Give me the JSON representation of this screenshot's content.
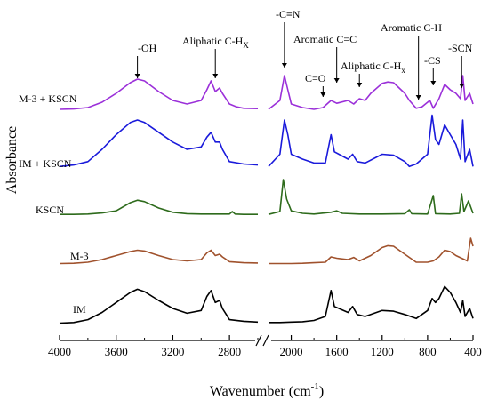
{
  "chart_data": {
    "type": "line",
    "xlabel": "Wavenumber (cm",
    "xlabel_sup": "-1",
    "xlabel_end": ")",
    "ylabel": "Absorbance",
    "x_reversed": true,
    "x_break": true,
    "x_segments": [
      [
        4000,
        2600
      ],
      [
        2200,
        400
      ]
    ],
    "x_ticks": [
      4000,
      3600,
      3200,
      2800,
      2000,
      1600,
      1200,
      800,
      400
    ],
    "y_ticks_shown": false,
    "series": [
      {
        "name": "M-3 + KSCN",
        "color": "#9b30d9",
        "points": [
          [
            4000,
            0.05
          ],
          [
            3900,
            0.06
          ],
          [
            3800,
            0.1
          ],
          [
            3700,
            0.25
          ],
          [
            3600,
            0.5
          ],
          [
            3500,
            0.8
          ],
          [
            3450,
            0.9
          ],
          [
            3400,
            0.85
          ],
          [
            3300,
            0.55
          ],
          [
            3200,
            0.3
          ],
          [
            3100,
            0.2
          ],
          [
            3000,
            0.3
          ],
          [
            2960,
            0.6
          ],
          [
            2930,
            0.85
          ],
          [
            2900,
            0.55
          ],
          [
            2870,
            0.65
          ],
          [
            2850,
            0.5
          ],
          [
            2800,
            0.2
          ],
          [
            2750,
            0.12
          ],
          [
            2700,
            0.08
          ],
          [
            2600,
            0.07
          ],
          [
            2200,
            0.05
          ],
          [
            2100,
            0.3
          ],
          [
            2060,
            1.0
          ],
          [
            2030,
            0.6
          ],
          [
            2000,
            0.2
          ],
          [
            1900,
            0.1
          ],
          [
            1800,
            0.05
          ],
          [
            1720,
            0.1
          ],
          [
            1650,
            0.3
          ],
          [
            1600,
            0.22
          ],
          [
            1500,
            0.3
          ],
          [
            1450,
            0.2
          ],
          [
            1400,
            0.35
          ],
          [
            1350,
            0.3
          ],
          [
            1300,
            0.5
          ],
          [
            1200,
            0.78
          ],
          [
            1150,
            0.82
          ],
          [
            1100,
            0.8
          ],
          [
            1000,
            0.5
          ],
          [
            960,
            0.3
          ],
          [
            900,
            0.08
          ],
          [
            850,
            0.12
          ],
          [
            780,
            0.3
          ],
          [
            750,
            0.08
          ],
          [
            700,
            0.35
          ],
          [
            650,
            0.75
          ],
          [
            600,
            0.6
          ],
          [
            550,
            0.5
          ],
          [
            510,
            0.35
          ],
          [
            490,
            1.0
          ],
          [
            470,
            0.3
          ],
          [
            430,
            0.5
          ],
          [
            400,
            0.2
          ]
        ]
      },
      {
        "name": "IM + KSCN",
        "color": "#1a1adb",
        "points": [
          [
            4000,
            0.05
          ],
          [
            3900,
            0.08
          ],
          [
            3800,
            0.15
          ],
          [
            3700,
            0.4
          ],
          [
            3600,
            0.7
          ],
          [
            3500,
            0.95
          ],
          [
            3450,
            1.0
          ],
          [
            3400,
            0.95
          ],
          [
            3300,
            0.75
          ],
          [
            3200,
            0.55
          ],
          [
            3100,
            0.4
          ],
          [
            3000,
            0.45
          ],
          [
            2960,
            0.65
          ],
          [
            2930,
            0.75
          ],
          [
            2900,
            0.55
          ],
          [
            2870,
            0.55
          ],
          [
            2850,
            0.4
          ],
          [
            2800,
            0.15
          ],
          [
            2700,
            0.1
          ],
          [
            2600,
            0.08
          ],
          [
            2200,
            0.05
          ],
          [
            2100,
            0.3
          ],
          [
            2060,
            1.0
          ],
          [
            2030,
            0.7
          ],
          [
            2000,
            0.3
          ],
          [
            1900,
            0.2
          ],
          [
            1800,
            0.12
          ],
          [
            1700,
            0.12
          ],
          [
            1650,
            0.7
          ],
          [
            1620,
            0.35
          ],
          [
            1500,
            0.2
          ],
          [
            1460,
            0.3
          ],
          [
            1420,
            0.15
          ],
          [
            1350,
            0.12
          ],
          [
            1200,
            0.3
          ],
          [
            1100,
            0.28
          ],
          [
            1000,
            0.15
          ],
          [
            960,
            0.05
          ],
          [
            900,
            0.1
          ],
          [
            800,
            0.3
          ],
          [
            760,
            1.1
          ],
          [
            730,
            0.6
          ],
          [
            700,
            0.5
          ],
          [
            650,
            0.9
          ],
          [
            600,
            0.7
          ],
          [
            550,
            0.5
          ],
          [
            510,
            0.2
          ],
          [
            490,
            1.0
          ],
          [
            470,
            0.15
          ],
          [
            430,
            0.4
          ],
          [
            400,
            0.05
          ]
        ]
      },
      {
        "name": "KSCN",
        "color": "#2e6b1c",
        "points": [
          [
            4000,
            0.02
          ],
          [
            3900,
            0.02
          ],
          [
            3800,
            0.03
          ],
          [
            3700,
            0.06
          ],
          [
            3600,
            0.12
          ],
          [
            3500,
            0.35
          ],
          [
            3450,
            0.42
          ],
          [
            3400,
            0.38
          ],
          [
            3300,
            0.2
          ],
          [
            3200,
            0.08
          ],
          [
            3100,
            0.04
          ],
          [
            3000,
            0.03
          ],
          [
            2900,
            0.03
          ],
          [
            2800,
            0.03
          ],
          [
            2780,
            0.1
          ],
          [
            2760,
            0.03
          ],
          [
            2700,
            0.02
          ],
          [
            2600,
            0.02
          ],
          [
            2200,
            0.02
          ],
          [
            2100,
            0.1
          ],
          [
            2070,
            1.0
          ],
          [
            2040,
            0.45
          ],
          [
            2000,
            0.12
          ],
          [
            1900,
            0.05
          ],
          [
            1800,
            0.03
          ],
          [
            1650,
            0.08
          ],
          [
            1600,
            0.12
          ],
          [
            1550,
            0.05
          ],
          [
            1400,
            0.03
          ],
          [
            1200,
            0.03
          ],
          [
            1000,
            0.04
          ],
          [
            960,
            0.15
          ],
          [
            940,
            0.04
          ],
          [
            800,
            0.03
          ],
          [
            750,
            0.55
          ],
          [
            730,
            0.04
          ],
          [
            600,
            0.03
          ],
          [
            520,
            0.05
          ],
          [
            500,
            0.6
          ],
          [
            480,
            0.1
          ],
          [
            440,
            0.4
          ],
          [
            400,
            0.05
          ]
        ]
      },
      {
        "name": "M-3",
        "color": "#a0522d",
        "points": [
          [
            4000,
            0.05
          ],
          [
            3900,
            0.06
          ],
          [
            3800,
            0.1
          ],
          [
            3700,
            0.2
          ],
          [
            3600,
            0.35
          ],
          [
            3500,
            0.5
          ],
          [
            3450,
            0.55
          ],
          [
            3400,
            0.52
          ],
          [
            3300,
            0.35
          ],
          [
            3200,
            0.2
          ],
          [
            3100,
            0.15
          ],
          [
            3000,
            0.2
          ],
          [
            2960,
            0.45
          ],
          [
            2930,
            0.55
          ],
          [
            2900,
            0.35
          ],
          [
            2870,
            0.4
          ],
          [
            2850,
            0.3
          ],
          [
            2800,
            0.12
          ],
          [
            2700,
            0.08
          ],
          [
            2600,
            0.07
          ],
          [
            2200,
            0.05
          ],
          [
            2100,
            0.05
          ],
          [
            2000,
            0.05
          ],
          [
            1900,
            0.06
          ],
          [
            1800,
            0.08
          ],
          [
            1700,
            0.1
          ],
          [
            1650,
            0.3
          ],
          [
            1600,
            0.25
          ],
          [
            1500,
            0.2
          ],
          [
            1450,
            0.28
          ],
          [
            1400,
            0.15
          ],
          [
            1300,
            0.35
          ],
          [
            1200,
            0.65
          ],
          [
            1150,
            0.72
          ],
          [
            1100,
            0.7
          ],
          [
            1000,
            0.4
          ],
          [
            900,
            0.1
          ],
          [
            800,
            0.1
          ],
          [
            750,
            0.15
          ],
          [
            700,
            0.3
          ],
          [
            650,
            0.55
          ],
          [
            600,
            0.5
          ],
          [
            550,
            0.35
          ],
          [
            500,
            0.25
          ],
          [
            450,
            0.15
          ],
          [
            420,
            1.0
          ],
          [
            400,
            0.7
          ]
        ]
      },
      {
        "name": "IM",
        "color": "#000000",
        "points": [
          [
            4000,
            0.03
          ],
          [
            3900,
            0.05
          ],
          [
            3800,
            0.12
          ],
          [
            3700,
            0.3
          ],
          [
            3600,
            0.55
          ],
          [
            3500,
            0.8
          ],
          [
            3450,
            0.88
          ],
          [
            3400,
            0.82
          ],
          [
            3300,
            0.6
          ],
          [
            3200,
            0.4
          ],
          [
            3100,
            0.28
          ],
          [
            3000,
            0.35
          ],
          [
            2960,
            0.7
          ],
          [
            2930,
            0.85
          ],
          [
            2900,
            0.55
          ],
          [
            2870,
            0.6
          ],
          [
            2850,
            0.4
          ],
          [
            2800,
            0.12
          ],
          [
            2700,
            0.08
          ],
          [
            2600,
            0.06
          ],
          [
            2200,
            0.05
          ],
          [
            2100,
            0.05
          ],
          [
            2000,
            0.06
          ],
          [
            1900,
            0.07
          ],
          [
            1800,
            0.1
          ],
          [
            1700,
            0.2
          ],
          [
            1650,
            0.85
          ],
          [
            1620,
            0.45
          ],
          [
            1500,
            0.3
          ],
          [
            1460,
            0.45
          ],
          [
            1420,
            0.25
          ],
          [
            1350,
            0.2
          ],
          [
            1200,
            0.35
          ],
          [
            1100,
            0.33
          ],
          [
            1000,
            0.25
          ],
          [
            900,
            0.15
          ],
          [
            800,
            0.35
          ],
          [
            760,
            0.65
          ],
          [
            730,
            0.55
          ],
          [
            700,
            0.65
          ],
          [
            650,
            0.95
          ],
          [
            600,
            0.8
          ],
          [
            550,
            0.55
          ],
          [
            510,
            0.3
          ],
          [
            490,
            0.6
          ],
          [
            470,
            0.2
          ],
          [
            430,
            0.4
          ],
          [
            400,
            0.15
          ]
        ]
      }
    ],
    "annotations": [
      {
        "text": "-OH",
        "x": 3450
      },
      {
        "text": "Aliphatic C-H",
        "sub": "X",
        "x": 2900
      },
      {
        "text": "-C≡N",
        "x": 2060
      },
      {
        "text": "C=O",
        "x": 1720
      },
      {
        "text": "Aromatic C=C",
        "x": 1600
      },
      {
        "text": "Aliphatic C-H",
        "sub": "x",
        "x": 1400
      },
      {
        "text": "Aromatic C-H",
        "x": 880
      },
      {
        "text": "-CS",
        "x": 750
      },
      {
        "text": "-SCN",
        "x": 500
      }
    ]
  }
}
